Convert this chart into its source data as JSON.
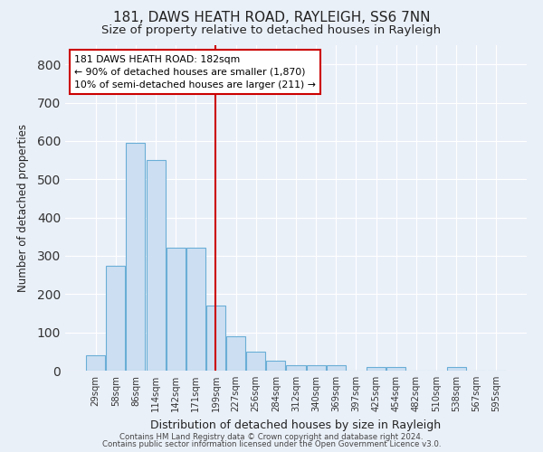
{
  "title1": "181, DAWS HEATH ROAD, RAYLEIGH, SS6 7NN",
  "title2": "Size of property relative to detached houses in Rayleigh",
  "xlabel": "Distribution of detached houses by size in Rayleigh",
  "ylabel": "Number of detached properties",
  "bar_values": [
    40,
    275,
    595,
    550,
    320,
    320,
    170,
    90,
    50,
    25,
    15,
    15,
    15,
    0,
    10,
    10,
    0,
    0,
    10,
    0,
    0
  ],
  "categories": [
    "29sqm",
    "58sqm",
    "86sqm",
    "114sqm",
    "142sqm",
    "171sqm",
    "199sqm",
    "227sqm",
    "256sqm",
    "284sqm",
    "312sqm",
    "340sqm",
    "369sqm",
    "397sqm",
    "425sqm",
    "454sqm",
    "482sqm",
    "510sqm",
    "538sqm",
    "567sqm",
    "595sqm"
  ],
  "bar_color": "#ccdff2",
  "bar_edge_color": "#6aaed6",
  "vline_x": 6.0,
  "vline_color": "#cc0000",
  "annotation_text": "181 DAWS HEATH ROAD: 182sqm\n← 90% of detached houses are smaller (1,870)\n10% of semi-detached houses are larger (211) →",
  "annotation_box_color": "#ffffff",
  "annotation_box_edge": "#cc0000",
  "ylim": [
    0,
    850
  ],
  "yticks": [
    0,
    100,
    200,
    300,
    400,
    500,
    600,
    700,
    800
  ],
  "footer1": "Contains HM Land Registry data © Crown copyright and database right 2024.",
  "footer2": "Contains public sector information licensed under the Open Government Licence v3.0.",
  "bg_color": "#eaf0f8",
  "grid_color": "#ffffff",
  "title1_fontsize": 11,
  "title2_fontsize": 9.5
}
